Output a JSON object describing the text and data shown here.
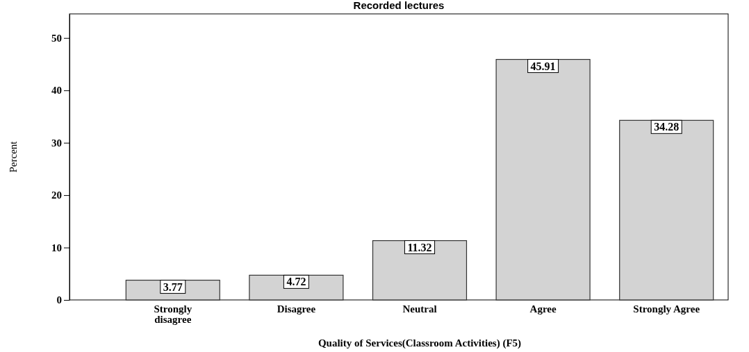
{
  "chart_data": {
    "type": "bar",
    "title": "Recorded lectures",
    "xlabel": "Quality of Services(Classroom Activities) (F5)",
    "ylabel": "Percent",
    "categories": [
      "Strongly disagree",
      "Disagree",
      "Neutral",
      "Agree",
      "Strongly Agree"
    ],
    "values": [
      3.77,
      4.72,
      11.32,
      45.91,
      34.28
    ],
    "color": "#d3d3d3",
    "ylim": [
      0,
      54.6
    ],
    "yticks": [
      0,
      10,
      20,
      30,
      40,
      50
    ],
    "data_labels": true
  }
}
